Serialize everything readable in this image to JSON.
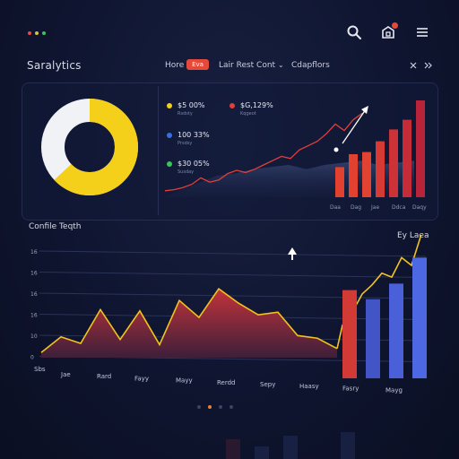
{
  "window": {
    "dots": [
      "#e8493f",
      "#d6c23b",
      "#3cc45a"
    ]
  },
  "brand": "Saralytics",
  "nav": {
    "home": "Hore",
    "pill": "Eva",
    "item2": "Lair Rest Cont",
    "chevron": "⌄",
    "item3": "Cdapflors"
  },
  "header_actions": {
    "search": "search-icon",
    "cart": "cart-icon",
    "menu": "menu-icon",
    "badge_color": "#e4493a"
  },
  "donut": {
    "fraction": 0.63,
    "color": "#f4d01a",
    "rest_color": "#f1f2f6"
  },
  "legend": [
    {
      "value": "$5 00%",
      "sub": "Rsdsty",
      "color": "#f4d01a"
    },
    {
      "value": "$G,129%",
      "sub": "Kqgeot",
      "color": "#e33f3a"
    },
    {
      "value": "100 33%",
      "sub": "Prsdsy",
      "color": "#3a6de0"
    },
    {
      "value": "$30 05%",
      "sub": "Susday",
      "color": "#3cc45a"
    }
  ],
  "top_chart": {
    "type": "line+bar",
    "line": [
      6,
      7,
      9,
      12,
      18,
      14,
      16,
      22,
      25,
      23,
      26,
      30,
      34,
      38,
      36,
      44,
      48,
      52,
      59,
      68,
      62,
      72,
      78
    ],
    "area": [
      20,
      22,
      26,
      28,
      30,
      26,
      30,
      32,
      34,
      30,
      32,
      34
    ],
    "bars": [
      28,
      40,
      42,
      52,
      63,
      72,
      90
    ],
    "bar_colors": [
      "#e2412f",
      "#e2412f",
      "#e14333",
      "#d53a35",
      "#cd3236",
      "#c52c37",
      "#b72439"
    ],
    "x_labels": [
      "Daa",
      "Dag",
      "Jae",
      "Ddca",
      "Daqy"
    ],
    "ymax": 100
  },
  "bottom": {
    "title": "Confile Teqth",
    "right_label": "Ey Laea",
    "y_labels": [
      "16",
      "16",
      "16",
      "16",
      "10",
      "0"
    ],
    "x_labels": [
      "Jae",
      "Rard",
      "Fayy",
      "Mayy",
      "Rerdd",
      "Sepy",
      "Haasy",
      "Fasry",
      "Mayg"
    ],
    "row_label": "Sbs",
    "area": [
      4,
      16,
      11,
      37,
      14,
      36,
      10,
      44,
      31,
      53,
      42,
      33,
      35,
      17,
      15,
      7
    ],
    "line_right": [
      25,
      35,
      49,
      56,
      65,
      62,
      77,
      71,
      95
    ],
    "bars": [
      52,
      45,
      57,
      77
    ],
    "bar_colors": [
      "#d23a36",
      "#4155c7",
      "#4a60d8",
      "#4d68e2"
    ],
    "ymax": 100
  },
  "pager": {
    "count": 4,
    "active": 1,
    "active_color": "#e8833c",
    "color": "#3c4466"
  }
}
